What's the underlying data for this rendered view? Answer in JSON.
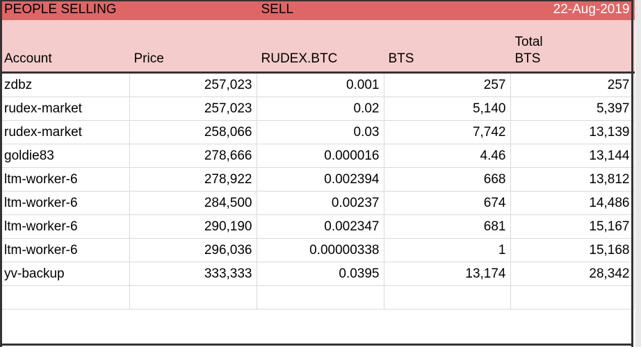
{
  "title_row": {
    "left": "PEOPLE SELLING",
    "mid": "SELL",
    "date": "22-Aug-2019"
  },
  "headers": {
    "account": "Account",
    "price": "Price",
    "rudex": "RUDEX.BTC",
    "bts": "BTS",
    "total_line1": "Total",
    "total_line2": "BTS"
  },
  "rows": [
    {
      "account": "zdbz",
      "price": "257,023",
      "rudex": "0.001",
      "bts": "257",
      "total": "257"
    },
    {
      "account": "rudex-market",
      "price": "257,023",
      "rudex": "0.02",
      "bts": "5,140",
      "total": "5,397"
    },
    {
      "account": "rudex-market",
      "price": "258,066",
      "rudex": "0.03",
      "bts": "7,742",
      "total": "13,139"
    },
    {
      "account": "goldie83",
      "price": "278,666",
      "rudex": "0.000016",
      "bts": "4.46",
      "total": "13,144"
    },
    {
      "account": "ltm-worker-6",
      "price": "278,922",
      "rudex": "0.002394",
      "bts": "668",
      "total": "13,812"
    },
    {
      "account": "ltm-worker-6",
      "price": "284,500",
      "rudex": "0.00237",
      "bts": "674",
      "total": "14,486"
    },
    {
      "account": "ltm-worker-6",
      "price": "290,190",
      "rudex": "0.002347",
      "bts": "681",
      "total": "15,167"
    },
    {
      "account": "ltm-worker-6",
      "price": "296,036",
      "rudex": "0.00000338",
      "bts": "1",
      "total": "15,168"
    },
    {
      "account": "yv-backup",
      "price": "333,333",
      "rudex": "0.0395",
      "bts": "13,174",
      "total": "28,342"
    }
  ],
  "colors": {
    "title_bg": "#e06666",
    "header_bg": "#f4cccc",
    "date_text": "#ffffff",
    "grid": "#d9d9d9"
  }
}
